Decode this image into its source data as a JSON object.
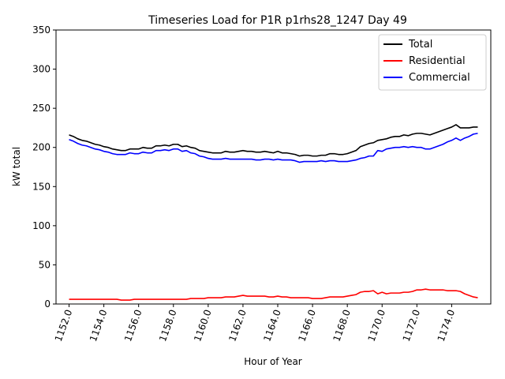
{
  "chart_data": {
    "type": "line",
    "title": "Timeseries Load for P1R p1rhs28_1247  Day 49",
    "xlabel": "Hour of Year",
    "ylabel": "kW total",
    "xlim": [
      1151.25,
      1176.25
    ],
    "ylim": [
      0,
      350
    ],
    "x_ticks": [
      1152,
      1154,
      1156,
      1158,
      1160,
      1162,
      1164,
      1166,
      1168,
      1170,
      1172,
      1174
    ],
    "x_tick_labels": [
      "1152.0",
      "1154.0",
      "1156.0",
      "1158.0",
      "1160.0",
      "1162.0",
      "1164.0",
      "1166.0",
      "1168.0",
      "1170.0",
      "1172.0",
      "1174.0"
    ],
    "y_ticks": [
      0,
      50,
      100,
      150,
      200,
      250,
      300,
      350
    ],
    "y_tick_labels": [
      "0",
      "50",
      "100",
      "150",
      "200",
      "250",
      "300",
      "350"
    ],
    "legend_position": "top-right",
    "x": [
      1152,
      1152.25,
      1152.5,
      1152.75,
      1153,
      1153.25,
      1153.5,
      1153.75,
      1154,
      1154.25,
      1154.5,
      1154.75,
      1155,
      1155.25,
      1155.5,
      1155.75,
      1156,
      1156.25,
      1156.5,
      1156.75,
      1157,
      1157.25,
      1157.5,
      1157.75,
      1158,
      1158.25,
      1158.5,
      1158.75,
      1159,
      1159.25,
      1159.5,
      1159.75,
      1160,
      1160.25,
      1160.5,
      1160.75,
      1161,
      1161.25,
      1161.5,
      1161.75,
      1162,
      1162.25,
      1162.5,
      1162.75,
      1163,
      1163.25,
      1163.5,
      1163.75,
      1164,
      1164.25,
      1164.5,
      1164.75,
      1165,
      1165.25,
      1165.5,
      1165.75,
      1166,
      1166.25,
      1166.5,
      1166.75,
      1167,
      1167.25,
      1167.5,
      1167.75,
      1168,
      1168.25,
      1168.5,
      1168.75,
      1169,
      1169.25,
      1169.5,
      1169.75,
      1170,
      1170.25,
      1170.5,
      1170.75,
      1171,
      1171.25,
      1171.5,
      1171.75,
      1172,
      1172.25,
      1172.5,
      1172.75,
      1173,
      1173.25,
      1173.5,
      1173.75,
      1174,
      1174.25,
      1174.5,
      1174.75,
      1175,
      1175.25,
      1175.5
    ],
    "series": [
      {
        "name": "Total",
        "color": "#000000",
        "values": [
          216,
          214,
          211,
          209,
          208,
          206,
          204,
          203,
          201,
          200,
          198,
          197,
          196,
          196,
          198,
          198,
          198,
          200,
          199,
          199,
          202,
          202,
          203,
          202,
          204,
          204,
          201,
          202,
          200,
          199,
          196,
          195,
          194,
          193,
          193,
          193,
          195,
          194,
          194,
          195,
          196,
          195,
          195,
          194,
          194,
          195,
          194,
          193,
          195,
          193,
          193,
          192,
          191,
          189,
          190,
          190,
          189,
          189,
          190,
          190,
          192,
          192,
          191,
          191,
          192,
          194,
          196,
          201,
          203,
          205,
          206,
          209,
          210,
          211,
          213,
          214,
          214,
          216,
          215,
          217,
          218,
          218,
          217,
          216,
          218,
          220,
          222,
          224,
          226,
          229,
          225,
          225,
          225,
          226,
          226
        ]
      },
      {
        "name": "Residential",
        "color": "#ff0000",
        "values": [
          6,
          6,
          6,
          6,
          6,
          6,
          6,
          6,
          6,
          6,
          6,
          6,
          5,
          5,
          5,
          6,
          6,
          6,
          6,
          6,
          6,
          6,
          6,
          6,
          6,
          6,
          6,
          6,
          7,
          7,
          7,
          7,
          8,
          8,
          8,
          8,
          9,
          9,
          9,
          10,
          11,
          10,
          10,
          10,
          10,
          10,
          9,
          9,
          10,
          9,
          9,
          8,
          8,
          8,
          8,
          8,
          7,
          7,
          7,
          8,
          9,
          9,
          9,
          9,
          10,
          11,
          12,
          15,
          16,
          16,
          17,
          13,
          15,
          13,
          14,
          14,
          14,
          15,
          15,
          16,
          18,
          18,
          19,
          18,
          18,
          18,
          18,
          17,
          17,
          17,
          16,
          13,
          11,
          9,
          8
        ]
      },
      {
        "name": "Commercial",
        "color": "#0000ff",
        "values": [
          210,
          208,
          205,
          203,
          202,
          200,
          198,
          197,
          195,
          194,
          192,
          191,
          191,
          191,
          193,
          192,
          192,
          194,
          193,
          193,
          196,
          196,
          197,
          196,
          198,
          198,
          195,
          196,
          193,
          192,
          189,
          188,
          186,
          185,
          185,
          185,
          186,
          185,
          185,
          185,
          185,
          185,
          185,
          184,
          184,
          185,
          185,
          184,
          185,
          184,
          184,
          184,
          183,
          181,
          182,
          182,
          182,
          182,
          183,
          182,
          183,
          183,
          182,
          182,
          182,
          183,
          184,
          186,
          187,
          189,
          189,
          196,
          195,
          198,
          199,
          200,
          200,
          201,
          200,
          201,
          200,
          200,
          198,
          198,
          200,
          202,
          204,
          207,
          209,
          212,
          209,
          212,
          214,
          217,
          218
        ]
      }
    ]
  }
}
